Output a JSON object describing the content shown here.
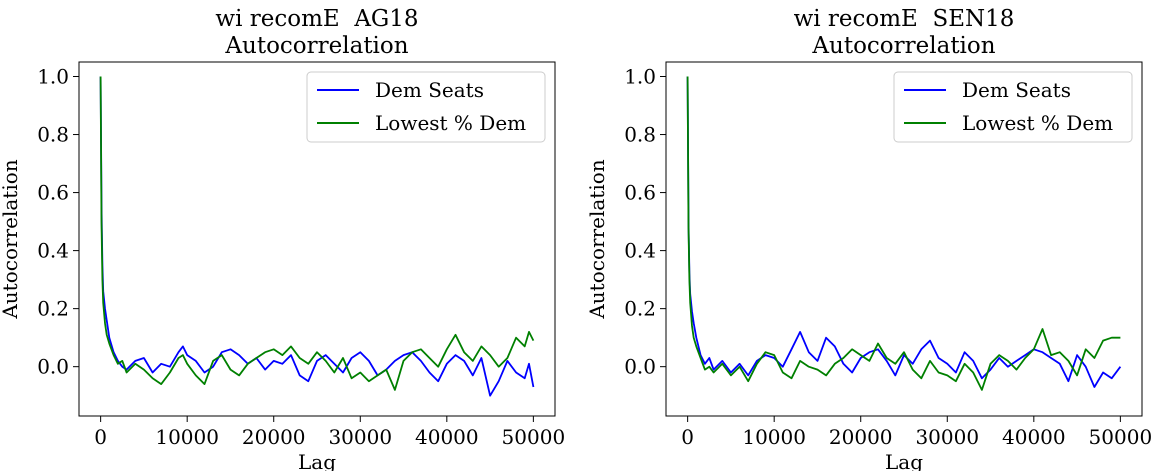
{
  "chart_data": [
    {
      "type": "line",
      "title": "wi recomE  AG18\nAutocorrelation",
      "xlabel": "Lag",
      "ylabel": "Autocorrelation",
      "xlim": [
        -2500,
        52500
      ],
      "ylim": [
        -0.17,
        1.05
      ],
      "xticks": [
        0,
        10000,
        20000,
        30000,
        40000,
        50000
      ],
      "yticks": [
        0.0,
        0.2,
        0.4,
        0.6,
        0.8,
        1.0
      ],
      "grid": false,
      "legend_position": "top-right",
      "series": [
        {
          "name": "Dem Seats",
          "color": "#0000ff",
          "x": [
            0,
            100,
            200,
            300,
            500,
            700,
            1000,
            1500,
            2000,
            2500,
            3000,
            4000,
            5000,
            6000,
            7000,
            8000,
            9000,
            9500,
            10000,
            11000,
            12000,
            13000,
            14000,
            15000,
            16000,
            17000,
            18000,
            19000,
            20000,
            21000,
            22000,
            23000,
            24000,
            25000,
            26000,
            27000,
            28000,
            29000,
            30000,
            31000,
            32000,
            33000,
            34000,
            35000,
            36000,
            37000,
            38000,
            39000,
            40000,
            41000,
            42000,
            43000,
            44000,
            45000,
            46000,
            47000,
            48000,
            49000,
            49500,
            50000
          ],
          "y": [
            1.0,
            0.55,
            0.35,
            0.26,
            0.2,
            0.16,
            0.1,
            0.05,
            0.02,
            0.0,
            -0.01,
            0.02,
            0.03,
            -0.02,
            0.01,
            0.0,
            0.05,
            0.07,
            0.04,
            0.02,
            -0.02,
            0.0,
            0.05,
            0.06,
            0.04,
            0.01,
            0.03,
            -0.01,
            0.02,
            0.01,
            0.04,
            -0.03,
            -0.05,
            0.02,
            0.04,
            0.01,
            -0.02,
            0.03,
            0.05,
            0.02,
            -0.03,
            -0.01,
            0.02,
            0.04,
            0.05,
            0.02,
            -0.02,
            -0.05,
            0.01,
            0.04,
            0.02,
            -0.03,
            0.03,
            -0.1,
            -0.05,
            0.02,
            -0.02,
            -0.04,
            0.01,
            -0.07
          ]
        },
        {
          "name": "Lowest % Dem",
          "color": "#008000",
          "x": [
            0,
            100,
            200,
            300,
            500,
            700,
            1000,
            1500,
            2000,
            2500,
            3000,
            4000,
            5000,
            6000,
            7000,
            8000,
            9000,
            9500,
            10000,
            11000,
            12000,
            13000,
            14000,
            15000,
            16000,
            17000,
            18000,
            19000,
            20000,
            21000,
            22000,
            23000,
            24000,
            25000,
            26000,
            27000,
            28000,
            29000,
            30000,
            31000,
            32000,
            33000,
            34000,
            35000,
            36000,
            37000,
            38000,
            39000,
            40000,
            41000,
            42000,
            43000,
            44000,
            45000,
            46000,
            47000,
            48000,
            49000,
            49500,
            50000
          ],
          "y": [
            1.0,
            0.5,
            0.3,
            0.22,
            0.15,
            0.11,
            0.08,
            0.04,
            0.01,
            0.02,
            -0.02,
            0.01,
            -0.01,
            -0.04,
            -0.06,
            -0.02,
            0.03,
            0.04,
            0.01,
            -0.03,
            -0.06,
            0.02,
            0.04,
            -0.01,
            -0.03,
            0.01,
            0.03,
            0.05,
            0.06,
            0.04,
            0.07,
            0.03,
            0.01,
            0.05,
            0.02,
            -0.02,
            0.03,
            -0.04,
            -0.02,
            -0.05,
            -0.03,
            -0.01,
            -0.08,
            0.02,
            0.05,
            0.06,
            0.03,
            0.0,
            0.06,
            0.11,
            0.05,
            0.02,
            0.07,
            0.04,
            0.0,
            0.03,
            0.1,
            0.07,
            0.12,
            0.09
          ]
        }
      ]
    },
    {
      "type": "line",
      "title": "wi recomE  SEN18\nAutocorrelation",
      "xlabel": "Lag",
      "ylabel": "Autocorrelation",
      "xlim": [
        -2500,
        52500
      ],
      "ylim": [
        -0.17,
        1.05
      ],
      "xticks": [
        0,
        10000,
        20000,
        30000,
        40000,
        50000
      ],
      "yticks": [
        0.0,
        0.2,
        0.4,
        0.6,
        0.8,
        1.0
      ],
      "grid": false,
      "legend_position": "top-right",
      "series": [
        {
          "name": "Dem Seats",
          "color": "#0000ff",
          "x": [
            0,
            100,
            200,
            300,
            500,
            700,
            1000,
            1500,
            2000,
            2500,
            3000,
            4000,
            5000,
            6000,
            7000,
            8000,
            9000,
            10000,
            11000,
            12000,
            13000,
            14000,
            15000,
            16000,
            17000,
            18000,
            19000,
            20000,
            21000,
            22000,
            23000,
            24000,
            25000,
            26000,
            27000,
            28000,
            29000,
            30000,
            31000,
            32000,
            33000,
            34000,
            35000,
            36000,
            37000,
            38000,
            39000,
            40000,
            41000,
            42000,
            43000,
            44000,
            45000,
            46000,
            47000,
            48000,
            49000,
            50000
          ],
          "y": [
            1.0,
            0.5,
            0.32,
            0.25,
            0.19,
            0.15,
            0.1,
            0.04,
            0.01,
            0.03,
            -0.01,
            0.02,
            -0.02,
            0.01,
            -0.03,
            0.02,
            0.04,
            0.03,
            0.0,
            0.06,
            0.12,
            0.05,
            0.02,
            0.1,
            0.07,
            0.01,
            -0.02,
            0.03,
            0.05,
            0.06,
            0.02,
            -0.03,
            0.04,
            0.01,
            0.06,
            0.09,
            0.03,
            0.01,
            -0.02,
            0.05,
            0.02,
            -0.04,
            -0.01,
            0.03,
            0.0,
            0.02,
            0.04,
            0.06,
            0.05,
            0.03,
            0.01,
            -0.05,
            0.04,
            0.0,
            -0.07,
            -0.02,
            -0.04,
            0.0
          ]
        },
        {
          "name": "Lowest % Dem",
          "color": "#008000",
          "x": [
            0,
            100,
            200,
            300,
            500,
            700,
            1000,
            1500,
            2000,
            2500,
            3000,
            4000,
            5000,
            6000,
            7000,
            8000,
            9000,
            10000,
            11000,
            12000,
            13000,
            14000,
            15000,
            16000,
            17000,
            18000,
            19000,
            20000,
            21000,
            22000,
            23000,
            24000,
            25000,
            26000,
            27000,
            28000,
            29000,
            30000,
            31000,
            32000,
            33000,
            34000,
            35000,
            36000,
            37000,
            38000,
            39000,
            40000,
            41000,
            42000,
            43000,
            44000,
            45000,
            46000,
            47000,
            48000,
            49000,
            50000
          ],
          "y": [
            1.0,
            0.48,
            0.3,
            0.22,
            0.14,
            0.1,
            0.07,
            0.03,
            -0.01,
            0.0,
            -0.02,
            0.01,
            -0.03,
            0.0,
            -0.05,
            0.01,
            0.05,
            0.04,
            -0.02,
            -0.04,
            0.02,
            0.0,
            -0.01,
            -0.03,
            0.01,
            0.03,
            0.06,
            0.04,
            0.02,
            0.08,
            0.03,
            0.01,
            0.05,
            -0.01,
            -0.04,
            0.02,
            -0.02,
            -0.03,
            -0.05,
            0.01,
            -0.02,
            -0.08,
            0.01,
            0.04,
            0.02,
            -0.01,
            0.03,
            0.06,
            0.13,
            0.04,
            0.05,
            0.02,
            -0.03,
            0.06,
            0.03,
            0.09,
            0.1,
            0.1
          ]
        }
      ]
    }
  ]
}
